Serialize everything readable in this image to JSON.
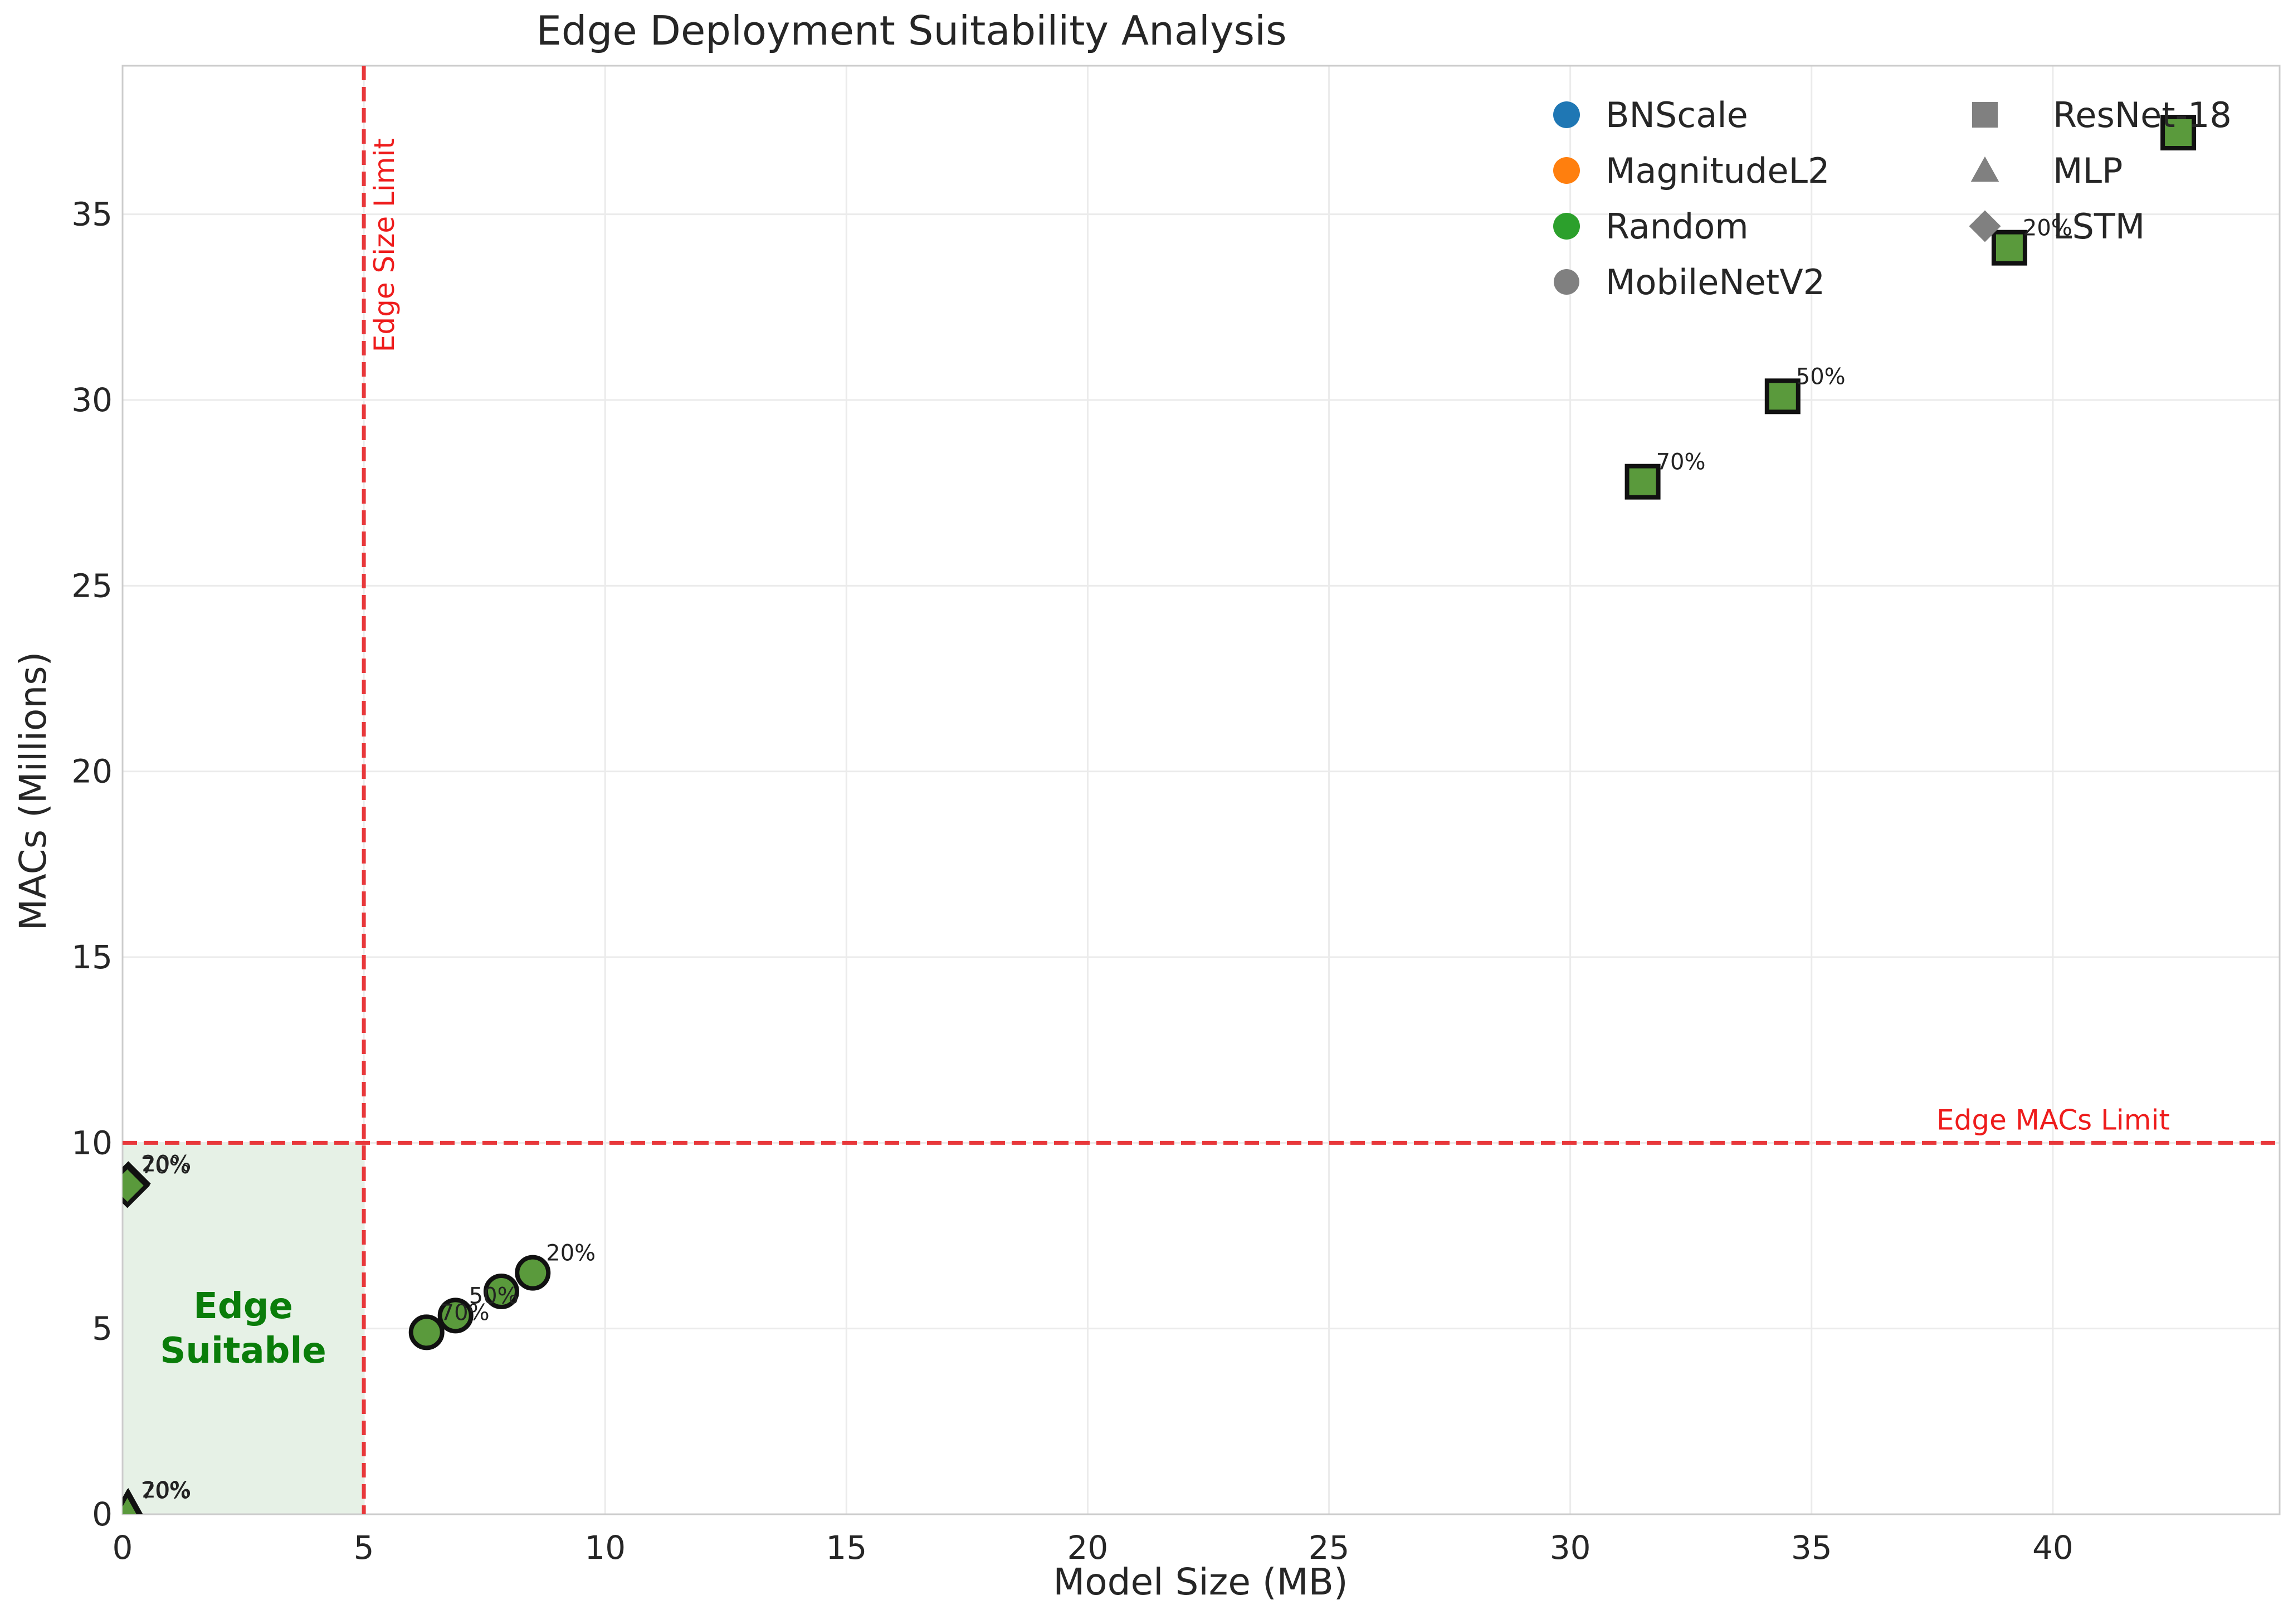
{
  "chart_data": {
    "type": "scatter",
    "title": "Edge Deployment Suitability Analysis",
    "xlabel": "Model Size (MB)",
    "ylabel": "MACs (Millions)",
    "xlim": [
      0,
      44.7
    ],
    "ylim": [
      0,
      39
    ],
    "xticks": [
      0,
      5,
      10,
      15,
      20,
      25,
      30,
      35,
      40
    ],
    "yticks": [
      0,
      5,
      10,
      15,
      20,
      25,
      30,
      35
    ],
    "grid": true,
    "legend_position": "top-right",
    "edge_size_limit": {
      "x": 5,
      "label": "Edge Size Limit",
      "color": "#e8383b"
    },
    "edge_macs_limit": {
      "y": 10,
      "label": "Edge MACs Limit",
      "color": "#e8383b"
    },
    "edge_region": {
      "label_line1": "Edge",
      "label_line2": "Suitable",
      "fill": "#e6f1e6",
      "text_color": "#0a7d0a"
    },
    "legend": {
      "methods": [
        {
          "name": "BNScale",
          "color": "#1f77b4"
        },
        {
          "name": "MagnitudeL2",
          "color": "#ff7f0e"
        },
        {
          "name": "Random",
          "color": "#2ca02c"
        }
      ],
      "models": [
        {
          "name": "MobileNetV2",
          "marker": "circle"
        },
        {
          "name": "ResNet-18",
          "marker": "square"
        },
        {
          "name": "MLP",
          "marker": "triangle"
        },
        {
          "name": "LSTM",
          "marker": "diamond"
        }
      ]
    },
    "points": [
      {
        "model": "ResNet-18",
        "marker": "square",
        "x": 42.6,
        "y": 37.2,
        "label": ""
      },
      {
        "model": "ResNet-18",
        "marker": "square",
        "x": 39.1,
        "y": 34.1,
        "label": "20%"
      },
      {
        "model": "ResNet-18",
        "marker": "square",
        "x": 34.4,
        "y": 30.1,
        "label": "50%"
      },
      {
        "model": "ResNet-18",
        "marker": "square",
        "x": 31.5,
        "y": 27.8,
        "label": "70%"
      },
      {
        "model": "MobileNetV2",
        "marker": "circle",
        "x": 8.5,
        "y": 6.5,
        "label": "20%"
      },
      {
        "model": "MobileNetV2",
        "marker": "circle",
        "x": 7.85,
        "y": 6.0,
        "label": ""
      },
      {
        "model": "MobileNetV2",
        "marker": "circle",
        "x": 6.9,
        "y": 5.35,
        "label": "50%"
      },
      {
        "model": "MobileNetV2",
        "marker": "circle",
        "x": 6.3,
        "y": 4.9,
        "label": "70%"
      },
      {
        "model": "LSTM",
        "marker": "diamond",
        "x": 0.12,
        "y": 8.9,
        "label": "20%"
      },
      {
        "model": "LSTM",
        "marker": "diamond",
        "x": 0.1,
        "y": 8.85,
        "label": "70%"
      },
      {
        "model": "MLP",
        "marker": "triangle",
        "x": 0.12,
        "y": 0.12,
        "label": "20%"
      },
      {
        "model": "MLP",
        "marker": "triangle",
        "x": 0.1,
        "y": 0.1,
        "label": "70%"
      }
    ],
    "point_fill": "#5a9a3c"
  }
}
